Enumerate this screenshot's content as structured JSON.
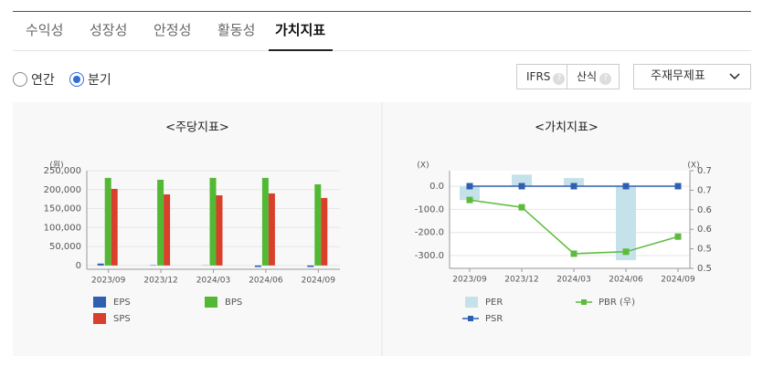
{
  "tabs": [
    "수익성",
    "성장성",
    "안정성",
    "활동성",
    "가치지표"
  ],
  "period_options": [
    "연간",
    "분기"
  ],
  "buttons": [
    "IFRS",
    "산식"
  ],
  "help_icon": "?",
  "dropdown": "주재무제표",
  "chart_data": [
    {
      "type": "bar",
      "title": "<주당지표>",
      "y_unit": "(원)",
      "categories": [
        "2023/09",
        "2023/12",
        "2024/03",
        "2024/06",
        "2024/09"
      ],
      "series": [
        {
          "name": "EPS",
          "color": "#2f5fb0",
          "values": [
            5000,
            1000,
            500,
            -4000,
            -4000
          ]
        },
        {
          "name": "BPS",
          "color": "#53b833",
          "values": [
            231000,
            226000,
            231000,
            231000,
            214000
          ]
        },
        {
          "name": "SPS",
          "color": "#d8402b",
          "values": [
            202000,
            187500,
            185000,
            190000,
            178000
          ]
        }
      ],
      "ylim": [
        -10000,
        250000
      ],
      "yticks": [
        0,
        {
          "value": 50000,
          "label": "50,000"
        },
        {
          "value": 100000,
          "label": "100,000"
        },
        {
          "value": 150000,
          "label": "150,000"
        },
        {
          "value": 200000,
          "label": "200,000"
        },
        {
          "value": 250000,
          "label": "250,000"
        }
      ],
      "grid": true
    },
    {
      "type": "combo",
      "title": "<가치지표>",
      "y_unit": "(X)",
      "y2_unit": "(X)",
      "categories": [
        "2023/09",
        "2023/12",
        "2024/03",
        "2024/06",
        "2024/09"
      ],
      "series": [
        {
          "name": "PER",
          "color": "#c5e2ea",
          "kind": "bar",
          "axis": "y",
          "values": [
            -60,
            50,
            35,
            -320,
            0
          ]
        },
        {
          "name": "PBR (우)",
          "color": "#5bbb3c",
          "kind": "line",
          "axis": "y2",
          "values": [
            0.64,
            0.625,
            0.53,
            0.534,
            0.565
          ]
        },
        {
          "name": "PSR",
          "color": "#2f5fb0",
          "kind": "line",
          "axis": "y",
          "values": [
            0,
            0,
            0,
            0,
            0
          ]
        }
      ],
      "ylim": [
        -355,
        67
      ],
      "yticks": [
        {
          "value": 0,
          "label": "0.0"
        },
        {
          "value": -100,
          "label": "-100.0"
        },
        {
          "value": -200,
          "label": "-200.0"
        },
        {
          "value": -300,
          "label": "-300.0"
        }
      ],
      "y2lim": [
        0.5,
        0.7
      ],
      "y2ticks": [
        0.5,
        {
          "value": 0.54,
          "label": "0.5"
        },
        {
          "value": 0.58,
          "label": "0.6"
        },
        {
          "value": 0.62,
          "label": "0.6"
        },
        {
          "value": 0.66,
          "label": "0.7"
        },
        {
          "value": 0.7,
          "label": "0.7"
        }
      ],
      "grid": true
    }
  ]
}
